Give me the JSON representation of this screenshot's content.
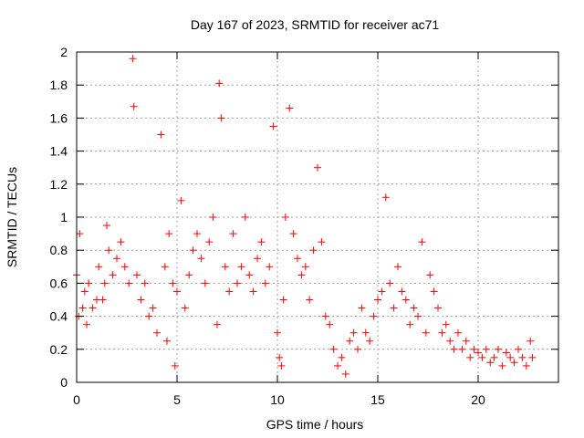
{
  "chart_data": {
    "type": "scatter",
    "title": "Day 167 of 2023, SRMTID for receiver ac71",
    "xlabel": "GPS time / hours",
    "ylabel": "SRMTID / TECUs",
    "xlim": [
      0,
      24
    ],
    "ylim": [
      0,
      2
    ],
    "x_ticks": [
      0,
      5,
      10,
      15,
      20
    ],
    "x_tick_labels": [
      "0",
      "5",
      "10",
      "15",
      "20"
    ],
    "y_ticks": [
      0,
      0.2,
      0.4,
      0.6,
      0.8,
      1,
      1.2,
      1.4,
      1.6,
      1.8,
      2
    ],
    "y_tick_labels": [
      "0",
      "0.2",
      "0.4",
      "0.6",
      "0.8",
      "1",
      "1.2",
      "1.4",
      "1.6",
      "1.8",
      "2"
    ],
    "grid": true,
    "marker": "+",
    "color": "#ff0000",
    "series": [
      {
        "name": "SRMTID",
        "x": [
          0.0,
          0.1,
          0.15,
          0.3,
          0.4,
          0.5,
          0.6,
          0.8,
          1.0,
          1.1,
          1.3,
          1.4,
          1.5,
          1.6,
          1.8,
          2.0,
          2.2,
          2.4,
          2.6,
          2.8,
          2.85,
          3.0,
          3.2,
          3.4,
          3.6,
          3.8,
          4.0,
          4.2,
          4.4,
          4.5,
          4.6,
          4.8,
          4.9,
          5.0,
          5.2,
          5.4,
          5.6,
          5.8,
          6.0,
          6.2,
          6.4,
          6.6,
          6.8,
          7.0,
          7.1,
          7.2,
          7.4,
          7.6,
          7.8,
          8.0,
          8.2,
          8.4,
          8.6,
          8.8,
          9.0,
          9.2,
          9.4,
          9.6,
          9.8,
          10.0,
          10.1,
          10.2,
          10.3,
          10.4,
          10.6,
          10.8,
          11.0,
          11.2,
          11.4,
          11.6,
          11.8,
          12.0,
          12.2,
          12.4,
          12.6,
          12.8,
          13.0,
          13.2,
          13.4,
          13.6,
          13.8,
          14.0,
          14.2,
          14.4,
          14.6,
          14.8,
          15.0,
          15.2,
          15.4,
          15.6,
          15.8,
          16.0,
          16.2,
          16.4,
          16.6,
          16.8,
          17.0,
          17.2,
          17.4,
          17.6,
          17.8,
          18.0,
          18.2,
          18.4,
          18.6,
          18.8,
          19.0,
          19.2,
          19.4,
          19.6,
          19.8,
          20.0,
          20.2,
          20.4,
          20.6,
          20.8,
          21.0,
          21.2,
          21.4,
          21.6,
          21.8,
          22.0,
          22.2,
          22.4,
          22.6,
          22.7
        ],
        "y": [
          0.65,
          0.4,
          0.9,
          0.45,
          0.55,
          0.35,
          0.6,
          0.45,
          0.5,
          0.7,
          0.5,
          0.6,
          0.95,
          0.8,
          0.65,
          0.75,
          0.85,
          0.7,
          0.6,
          1.96,
          1.67,
          0.65,
          0.5,
          0.6,
          0.4,
          0.45,
          0.3,
          1.5,
          0.7,
          0.25,
          0.9,
          0.6,
          0.1,
          0.55,
          1.1,
          0.45,
          0.65,
          0.8,
          0.9,
          0.75,
          0.6,
          0.85,
          1.0,
          0.35,
          1.81,
          1.6,
          0.7,
          0.55,
          0.9,
          0.6,
          0.7,
          1.0,
          0.65,
          0.55,
          0.75,
          0.85,
          0.6,
          0.7,
          1.55,
          0.3,
          0.15,
          0.1,
          0.5,
          1.0,
          1.66,
          0.9,
          0.75,
          0.65,
          0.7,
          0.5,
          0.8,
          1.3,
          0.85,
          0.4,
          0.35,
          0.2,
          0.1,
          0.15,
          0.05,
          0.25,
          0.3,
          0.2,
          0.45,
          0.3,
          0.25,
          0.4,
          0.5,
          0.55,
          1.12,
          0.6,
          0.45,
          0.7,
          0.55,
          0.5,
          0.35,
          0.45,
          0.4,
          0.85,
          0.3,
          0.65,
          0.55,
          0.45,
          0.3,
          0.35,
          0.25,
          0.2,
          0.3,
          0.2,
          0.25,
          0.15,
          0.2,
          0.18,
          0.15,
          0.2,
          0.12,
          0.15,
          0.2,
          0.1,
          0.18,
          0.15,
          0.12,
          0.2,
          0.15,
          0.1,
          0.25,
          0.15
        ]
      }
    ]
  }
}
